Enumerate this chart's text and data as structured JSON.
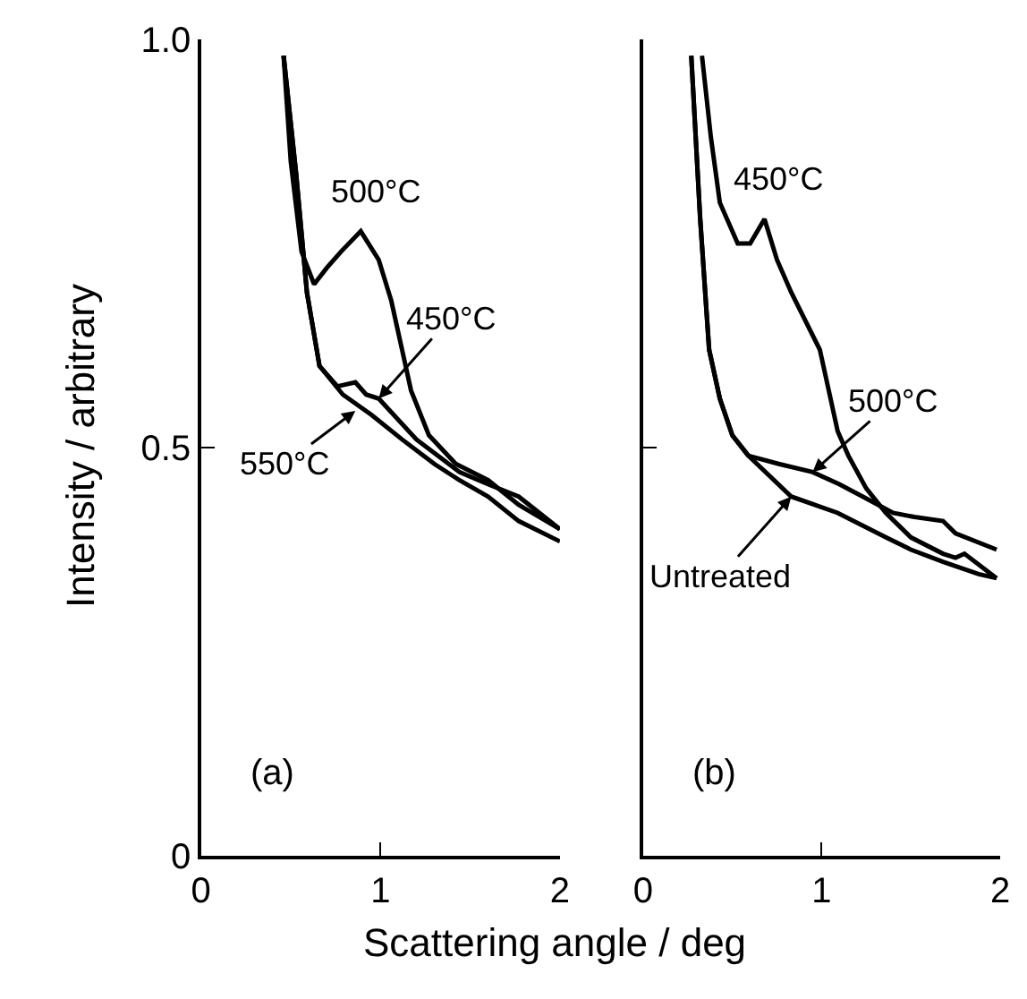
{
  "chart_data": [
    {
      "type": "line",
      "ylabel": "Intensity / arbitrary",
      "xlabel": "Scattering angle / deg",
      "xlim": [
        0,
        2
      ],
      "xticks": [
        0,
        1,
        2
      ],
      "ylim": [
        0,
        1
      ],
      "yticks": [
        0,
        0.5,
        {
          "value": 1,
          "label": "1.0"
        }
      ],
      "marker": "none",
      "line_style": "solid",
      "annotations": [
        {
          "text": "500°C",
          "x": 0.89,
          "y": 0.765
        },
        {
          "text": "450°C",
          "x": 0.99,
          "y": 0.56
        },
        {
          "text": "550°C",
          "x": 0.86,
          "y": 0.545
        },
        "(a)"
      ],
      "series": [
        {
          "color": "#000000",
          "x": [
            0.46,
            0.5,
            0.56,
            0.63,
            0.7,
            0.78,
            0.89,
            0.99,
            1.06,
            1.12,
            1.17,
            1.27,
            1.42,
            1.6,
            1.77,
            2.0
          ],
          "values": [
            0.98,
            0.85,
            0.74,
            0.7,
            0.72,
            0.74,
            0.765,
            0.73,
            0.68,
            0.62,
            0.57,
            0.515,
            0.48,
            0.46,
            0.43,
            0.4
          ]
        },
        {
          "color": "#000000",
          "x": [
            0.46,
            0.53,
            0.59,
            0.66,
            0.76,
            0.86,
            0.92,
            0.99,
            1.2,
            1.44,
            1.6,
            1.77,
            2.0
          ],
          "values": [
            0.98,
            0.835,
            0.69,
            0.6,
            0.575,
            0.58,
            0.565,
            0.56,
            0.51,
            0.47,
            0.455,
            0.44,
            0.4
          ]
        },
        {
          "color": "#000000",
          "x": [
            0.46,
            0.53,
            0.59,
            0.66,
            0.79,
            0.95,
            1.12,
            1.3,
            1.44,
            1.6,
            1.77,
            2.0
          ],
          "values": [
            0.98,
            0.835,
            0.69,
            0.6,
            0.565,
            0.54,
            0.51,
            0.48,
            0.46,
            0.44,
            0.41,
            0.385
          ]
        }
      ]
    },
    {
      "type": "line",
      "xlim": [
        0,
        2
      ],
      "xticks": [
        0,
        1,
        2
      ],
      "ylim": [
        0,
        1
      ],
      "yticks": [
        0,
        0.5,
        1
      ],
      "tick_labels": "x",
      "marker": "none",
      "line_style": "solid",
      "annotations": [
        {
          "text": "450°C",
          "x": 0.68,
          "y": 0.78
        },
        {
          "text": "500°C",
          "x": 0.95,
          "y": 0.47
        },
        {
          "text": "Untreated",
          "x": 0.83,
          "y": 0.44
        },
        "(b)"
      ],
      "series": [
        {
          "color": "#000000",
          "x": [
            0.33,
            0.38,
            0.43,
            0.53,
            0.6,
            0.68,
            0.75,
            0.83,
            0.99,
            1.09,
            1.15,
            1.25,
            1.36,
            1.5,
            1.68,
            1.75,
            1.8,
            1.98
          ],
          "values": [
            0.98,
            0.88,
            0.8,
            0.75,
            0.75,
            0.78,
            0.73,
            0.69,
            0.62,
            0.52,
            0.49,
            0.45,
            0.42,
            0.39,
            0.37,
            0.365,
            0.37,
            0.34
          ]
        },
        {
          "color": "#000000",
          "x": [
            0.27,
            0.32,
            0.37,
            0.43,
            0.5,
            0.59,
            0.76,
            0.95,
            1.1,
            1.23,
            1.4,
            1.52,
            1.68,
            1.75,
            1.98
          ],
          "values": [
            0.98,
            0.78,
            0.62,
            0.56,
            0.515,
            0.49,
            0.48,
            0.47,
            0.455,
            0.44,
            0.42,
            0.415,
            0.41,
            0.395,
            0.375
          ]
        },
        {
          "color": "#000000",
          "x": [
            0.27,
            0.32,
            0.37,
            0.43,
            0.5,
            0.59,
            0.83,
            1.09,
            1.36,
            1.5,
            1.68,
            1.88,
            1.98
          ],
          "values": [
            0.98,
            0.78,
            0.62,
            0.56,
            0.515,
            0.49,
            0.44,
            0.42,
            0.39,
            0.375,
            0.36,
            0.345,
            0.34
          ]
        }
      ]
    }
  ]
}
